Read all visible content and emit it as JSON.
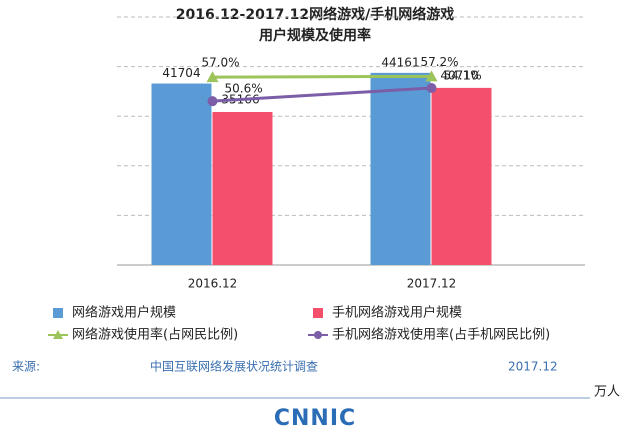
{
  "chart_data": {
    "type": "bar-line",
    "title": [
      "2016.12-2017.12网络游戏/手机网络游戏",
      "用户规模及使用率"
    ],
    "categories": [
      "2016.12",
      "2017.12"
    ],
    "ylim": [
      0,
      57000
    ],
    "y2lim": [
      7,
      73
    ],
    "grid": true,
    "series": [
      {
        "name": "网络游戏用户规模",
        "type": "bar",
        "color": "#5b9bd5",
        "values": [
          41704,
          44161
        ]
      },
      {
        "name": "手机网络游戏用户规模",
        "type": "bar",
        "color": "#f5506b",
        "values": [
          35166,
          40710
        ]
      },
      {
        "name": "网络游戏使用率(占网民比例)",
        "type": "line",
        "axis": "y2",
        "color": "#9dc45a",
        "marker": "triangle",
        "values": [
          57.0,
          57.2
        ],
        "value_labels": [
          "57.0%",
          "57.2%"
        ]
      },
      {
        "name": "手机网络游戏使用率(占手机网民比例)",
        "type": "line",
        "axis": "y2",
        "color": "#7b5ea7",
        "marker": "circle",
        "values": [
          50.6,
          54.1
        ],
        "value_labels": [
          "50.6%",
          "54.1%"
        ]
      }
    ]
  },
  "footer": {
    "source_label": "来源:",
    "source": "中国互联网络发展状况统计调查",
    "date": "2017.12",
    "unit": "万人",
    "logo": "CNNIC"
  }
}
